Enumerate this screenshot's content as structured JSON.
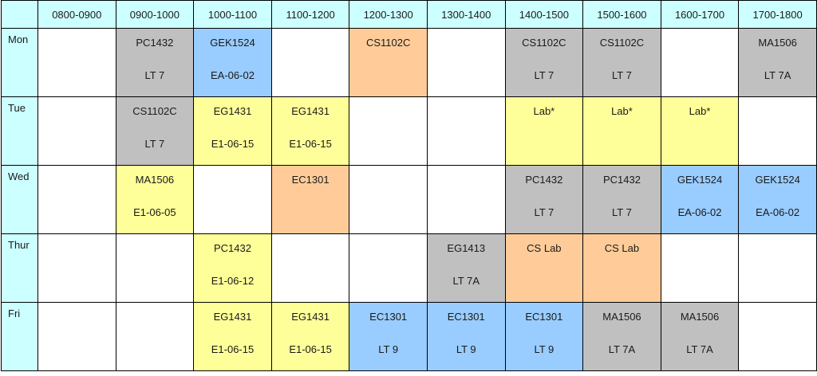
{
  "colors": {
    "header_bg": "#ccffff",
    "gray": "#c0c0c0",
    "blue": "#99ccff",
    "orange": "#ffcc99",
    "yellow": "#ffff99"
  },
  "timeslots": [
    "0800-0900",
    "0900-1000",
    "1000-1100",
    "1100-1200",
    "1200-1300",
    "1300-1400",
    "1400-1500",
    "1500-1600",
    "1600-1700",
    "1700-1800"
  ],
  "rows": [
    {
      "day": "Mon",
      "cells": [
        {
          "code": "",
          "room": "",
          "color": "empty"
        },
        {
          "code": "PC1432",
          "room": "LT 7",
          "color": "gray"
        },
        {
          "code": "GEK1524",
          "room": "EA-06-02",
          "color": "blue"
        },
        {
          "code": "",
          "room": "",
          "color": "empty"
        },
        {
          "code": "CS1102C",
          "room": "",
          "color": "orange"
        },
        {
          "code": "",
          "room": "",
          "color": "empty"
        },
        {
          "code": "CS1102C",
          "room": "LT 7",
          "color": "gray"
        },
        {
          "code": "CS1102C",
          "room": "LT 7",
          "color": "gray"
        },
        {
          "code": "",
          "room": "",
          "color": "empty"
        },
        {
          "code": "MA1506",
          "room": "LT 7A",
          "color": "gray"
        }
      ]
    },
    {
      "day": "Tue",
      "cells": [
        {
          "code": "",
          "room": "",
          "color": "empty"
        },
        {
          "code": "CS1102C",
          "room": "LT 7",
          "color": "gray"
        },
        {
          "code": "EG1431",
          "room": "E1-06-15",
          "color": "yellow"
        },
        {
          "code": "EG1431",
          "room": "E1-06-15",
          "color": "yellow"
        },
        {
          "code": "",
          "room": "",
          "color": "empty"
        },
        {
          "code": "",
          "room": "",
          "color": "empty"
        },
        {
          "code": "Lab*",
          "room": "",
          "color": "yellow"
        },
        {
          "code": "Lab*",
          "room": "",
          "color": "yellow"
        },
        {
          "code": "Lab*",
          "room": "",
          "color": "yellow"
        },
        {
          "code": "",
          "room": "",
          "color": "empty"
        }
      ]
    },
    {
      "day": "Wed",
      "cells": [
        {
          "code": "",
          "room": "",
          "color": "empty"
        },
        {
          "code": "MA1506",
          "room": "E1-06-05",
          "color": "yellow"
        },
        {
          "code": "",
          "room": "",
          "color": "empty"
        },
        {
          "code": "EC1301",
          "room": "",
          "color": "orange"
        },
        {
          "code": "",
          "room": "",
          "color": "empty"
        },
        {
          "code": "",
          "room": "",
          "color": "empty"
        },
        {
          "code": "PC1432",
          "room": "LT 7",
          "color": "gray"
        },
        {
          "code": "PC1432",
          "room": "LT 7",
          "color": "gray"
        },
        {
          "code": "GEK1524",
          "room": "EA-06-02",
          "color": "blue"
        },
        {
          "code": "GEK1524",
          "room": "EA-06-02",
          "color": "blue"
        }
      ]
    },
    {
      "day": "Thur",
      "cells": [
        {
          "code": "",
          "room": "",
          "color": "empty"
        },
        {
          "code": "",
          "room": "",
          "color": "empty"
        },
        {
          "code": "PC1432",
          "room": "E1-06-12",
          "color": "yellow"
        },
        {
          "code": "",
          "room": "",
          "color": "empty"
        },
        {
          "code": "",
          "room": "",
          "color": "empty"
        },
        {
          "code": "EG1413",
          "room": "LT 7A",
          "color": "gray"
        },
        {
          "code": "CS Lab",
          "room": "",
          "color": "orange"
        },
        {
          "code": "CS Lab",
          "room": "",
          "color": "orange"
        },
        {
          "code": "",
          "room": "",
          "color": "empty"
        },
        {
          "code": "",
          "room": "",
          "color": "empty"
        }
      ]
    },
    {
      "day": "Fri",
      "cells": [
        {
          "code": "",
          "room": "",
          "color": "empty"
        },
        {
          "code": "",
          "room": "",
          "color": "empty"
        },
        {
          "code": "EG1431",
          "room": "E1-06-15",
          "color": "yellow"
        },
        {
          "code": "EG1431",
          "room": "E1-06-15",
          "color": "yellow"
        },
        {
          "code": "EC1301",
          "room": "LT 9",
          "color": "blue"
        },
        {
          "code": "EC1301",
          "room": "LT 9",
          "color": "blue"
        },
        {
          "code": "EC1301",
          "room": "LT 9",
          "color": "blue"
        },
        {
          "code": "MA1506",
          "room": "LT 7A",
          "color": "gray"
        },
        {
          "code": "MA1506",
          "room": "LT 7A",
          "color": "gray"
        },
        {
          "code": "",
          "room": "",
          "color": "empty"
        }
      ]
    }
  ]
}
